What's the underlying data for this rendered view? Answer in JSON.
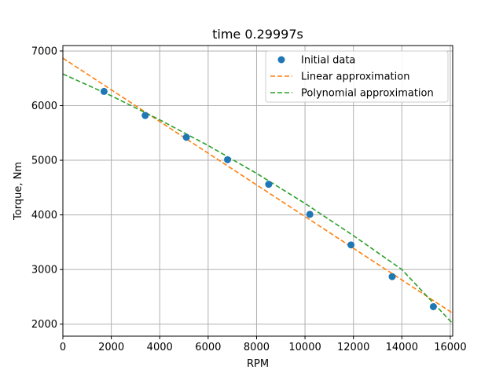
{
  "chart_data": {
    "type": "line",
    "title": "time 0.29997s",
    "xlabel": "RPM",
    "ylabel": "Torque, Nm",
    "xlim": [
      0,
      16100
    ],
    "ylim": [
      1780,
      7100
    ],
    "xticks": [
      0,
      2000,
      4000,
      6000,
      8000,
      10000,
      12000,
      14000,
      16000
    ],
    "yticks": [
      2000,
      3000,
      4000,
      5000,
      6000,
      7000
    ],
    "grid": true,
    "legend_position": "top-right",
    "series": [
      {
        "name": "Initial data",
        "kind": "scatter",
        "color": "#1f77b4",
        "x": [
          1700,
          3400,
          5100,
          6800,
          8500,
          10200,
          11900,
          13600,
          15300
        ],
        "y": [
          6260,
          5820,
          5420,
          5010,
          4560,
          4010,
          3450,
          2870,
          2320
        ]
      },
      {
        "name": "Linear approximation",
        "kind": "dashed-line",
        "color": "#ff7f0e",
        "x": [
          0,
          16100
        ],
        "y": [
          6870,
          2200
        ]
      },
      {
        "name": "Polynomial approximation",
        "kind": "dashed-line",
        "color": "#2ca02c",
        "x": [
          0,
          2000,
          4000,
          6000,
          8000,
          10000,
          12000,
          14000,
          16100
        ],
        "y": [
          6580,
          6180,
          5740,
          5270,
          4760,
          4210,
          3620,
          3000,
          2010
        ]
      }
    ]
  }
}
